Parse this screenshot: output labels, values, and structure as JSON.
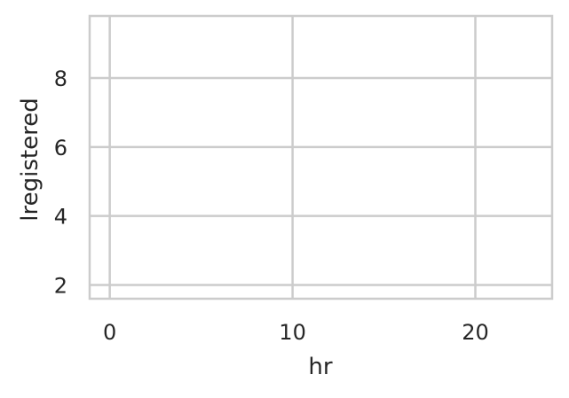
{
  "chart_data": {
    "type": "line",
    "title": "",
    "xlabel": "hr",
    "ylabel": "lregistered",
    "xlim": [
      -1.1,
      24.2
    ],
    "ylim": [
      1.6,
      9.8
    ],
    "x_ticks": [
      0,
      10,
      20
    ],
    "y_ticks": [
      2,
      4,
      6,
      8
    ],
    "grid": true,
    "series": [],
    "colors": {
      "background": "#ffffff",
      "grid": "#cccccc",
      "spine": "#cccccc",
      "text": "#262626"
    }
  }
}
